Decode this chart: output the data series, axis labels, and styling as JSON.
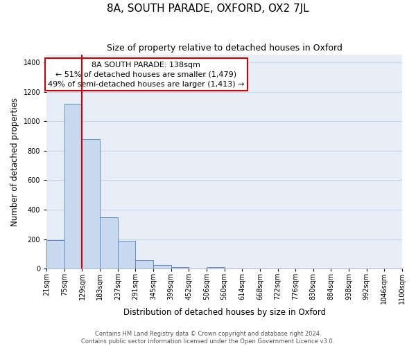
{
  "title": "8A, SOUTH PARADE, OXFORD, OX2 7JL",
  "subtitle": "Size of property relative to detached houses in Oxford",
  "xlabel": "Distribution of detached houses by size in Oxford",
  "ylabel": "Number of detached properties",
  "bar_values": [
    195,
    1120,
    880,
    350,
    190,
    58,
    22,
    12,
    0,
    12,
    0,
    0,
    0,
    0,
    0,
    0,
    0,
    0,
    0,
    0
  ],
  "bar_labels": [
    "21sqm",
    "75sqm",
    "129sqm",
    "183sqm",
    "237sqm",
    "291sqm",
    "345sqm",
    "399sqm",
    "452sqm",
    "506sqm",
    "560sqm",
    "614sqm",
    "668sqm",
    "722sqm",
    "776sqm",
    "830sqm",
    "884sqm",
    "938sqm",
    "992sqm",
    "1046sqm",
    "1100sqm"
  ],
  "bar_color": "#c8d8ee",
  "bar_edge_color": "#5b8dc8",
  "bar_alpha": 1.0,
  "vline_x": 2,
  "vline_color": "#cc0000",
  "vline_lw": 1.5,
  "annotation_title": "8A SOUTH PARADE: 138sqm",
  "annotation_line1": "← 51% of detached houses are smaller (1,479)",
  "annotation_line2": "49% of semi-detached houses are larger (1,413) →",
  "annotation_box_color": "#ffffff",
  "annotation_box_edge_color": "#cc0000",
  "ylim": [
    0,
    1450
  ],
  "yticks": [
    0,
    200,
    400,
    600,
    800,
    1000,
    1200,
    1400
  ],
  "grid_color": "#c8d4e8",
  "bg_color": "#e8eef8",
  "footer_line1": "Contains HM Land Registry data © Crown copyright and database right 2024.",
  "footer_line2": "Contains public sector information licensed under the Open Government Licence v3.0.",
  "title_fontsize": 11,
  "subtitle_fontsize": 9,
  "axis_label_fontsize": 8.5,
  "tick_fontsize": 7,
  "annotation_fontsize": 8,
  "footer_fontsize": 6
}
